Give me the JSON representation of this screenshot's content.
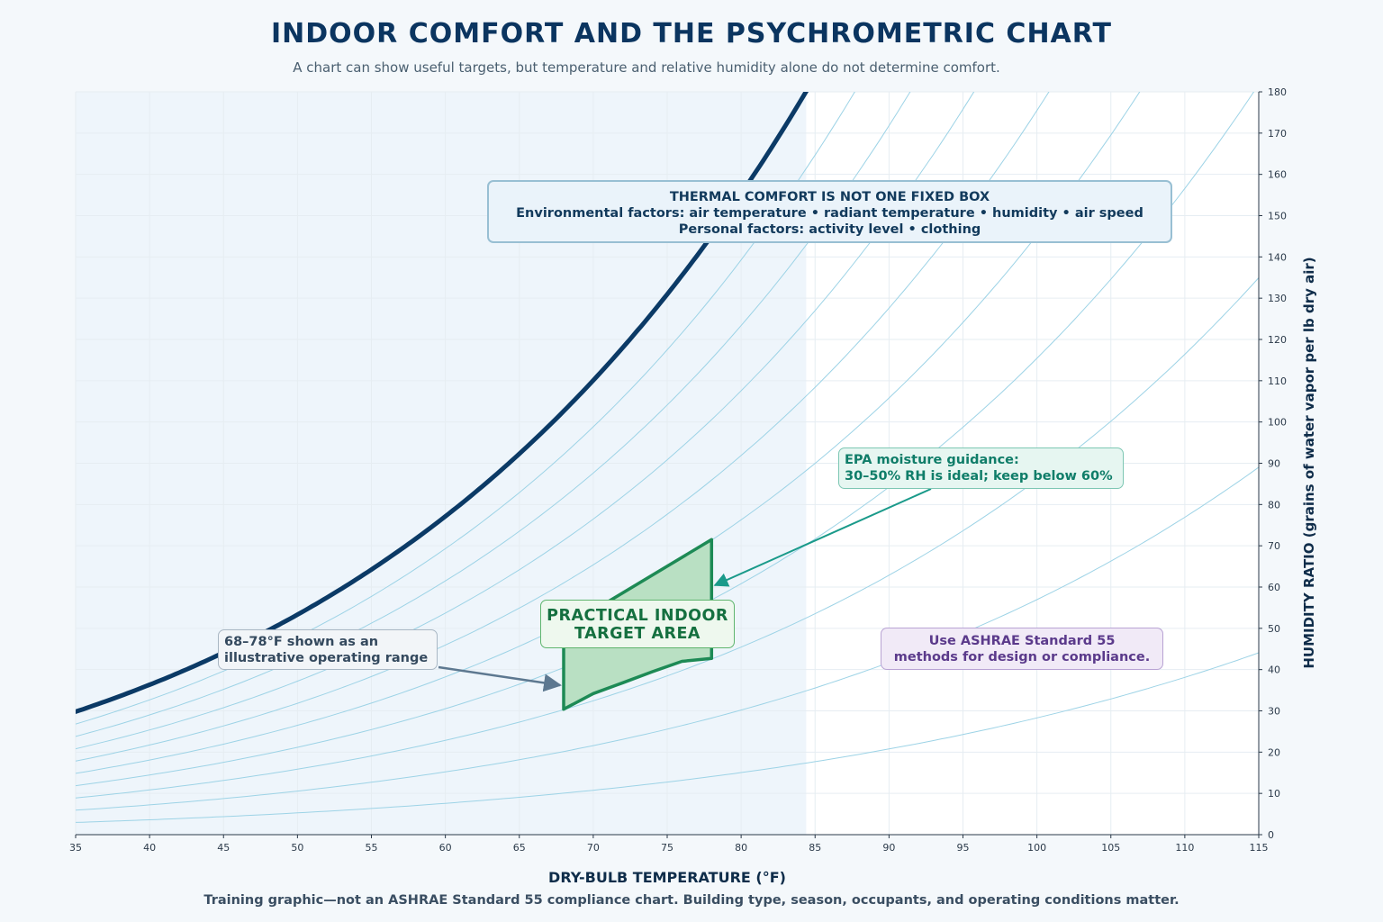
{
  "title": "INDOOR COMFORT AND THE PSYCHROMETRIC CHART",
  "subtitle": "A chart can show useful targets, but temperature and relative humidity alone do not determine comfort.",
  "footer": "Training graphic—not an ASHRAE Standard 55 compliance chart. Building type, season, occupants, and operating conditions matter.",
  "annotations": {
    "thermal": {
      "line1": "THERMAL COMFORT IS NOT ONE FIXED BOX",
      "line2": "Environmental factors: air temperature • radiant temperature • humidity • air speed",
      "line3": "Personal factors: activity level • clothing"
    },
    "epa": {
      "line1": "EPA moisture guidance:",
      "line2": "30–50% RH is ideal; keep below 60%"
    },
    "ashrae": {
      "line1": "Use ASHRAE Standard 55",
      "line2": "methods for design or compliance."
    },
    "range": {
      "line1": "68–78°F shown as an",
      "line2": "illustrative operating range"
    },
    "target": {
      "line1": "PRACTICAL INDOOR",
      "line2": "TARGET AREA"
    }
  },
  "colors": {
    "saturation": "#0b3a66",
    "rh_curves": "#9dd3e6",
    "target_fill": "#b9e0c3",
    "target_stroke": "#1d8a55",
    "epa_arrow": "#1a9a8a",
    "range_arrow": "#5d7890",
    "shade": "#eef5fb"
  },
  "chart_data": {
    "type": "line",
    "xlabel": "DRY-BULB TEMPERATURE (°F)",
    "ylabel": "HUMIDITY RATIO (grains of water vapor per lb dry air)",
    "xlim": [
      35,
      115
    ],
    "ylim": [
      0,
      180
    ],
    "xticks": [
      35,
      40,
      45,
      50,
      55,
      60,
      65,
      70,
      75,
      80,
      85,
      90,
      95,
      100,
      105,
      110,
      115
    ],
    "yticks": [
      0,
      10,
      20,
      30,
      40,
      50,
      60,
      70,
      80,
      90,
      100,
      110,
      120,
      130,
      140,
      150,
      160,
      170,
      180
    ],
    "y_axis_side": "right",
    "grid": true,
    "shaded_region_x": [
      35,
      84.4
    ],
    "saturation_curve": {
      "rh": 100
    },
    "rh_curves": [
      10,
      20,
      30,
      40,
      50,
      60,
      70,
      80,
      90
    ],
    "target_area": {
      "x_range": [
        68,
        78
      ],
      "rh_range": [
        30,
        60
      ],
      "points": [
        [
          68,
          30.4
        ],
        [
          70,
          34.2
        ],
        [
          72,
          36.8
        ],
        [
          74,
          39.5
        ],
        [
          76,
          42.0
        ],
        [
          78,
          42.7
        ],
        [
          78,
          71.5
        ],
        [
          68,
          50.0
        ]
      ]
    }
  }
}
